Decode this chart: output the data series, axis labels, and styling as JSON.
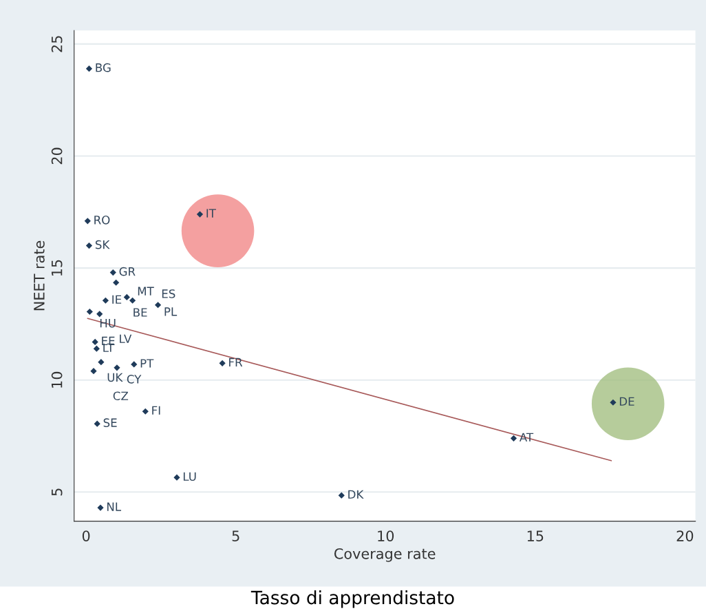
{
  "chart_data": {
    "type": "scatter",
    "xlabel": "Coverage rate",
    "ylabel": "NEET rate",
    "xlim": [
      -0.4,
      20.35
    ],
    "ylim": [
      3.7,
      25.6
    ],
    "xticks": [
      0,
      5,
      10,
      15,
      20
    ],
    "yticks": [
      5,
      10,
      15,
      20,
      25
    ],
    "grid": "y",
    "legend": false,
    "series": [
      {
        "marker": "diamond",
        "color": "#1f3b5a",
        "x": [
          0.1,
          0.05,
          0.1,
          3.8,
          0.9,
          1.0,
          1.36,
          1.55,
          2.4,
          0.65,
          0.12,
          0.45,
          0.3,
          0.35,
          0.5,
          0.25,
          1.03,
          1.6,
          4.55,
          1.98,
          0.37,
          3.03,
          0.48,
          8.53,
          14.28,
          17.6
        ],
        "values": [
          23.9,
          17.1,
          16.0,
          17.4,
          14.8,
          14.35,
          13.7,
          13.55,
          13.35,
          13.55,
          13.05,
          12.95,
          11.7,
          11.4,
          10.8,
          10.4,
          10.55,
          10.7,
          10.75,
          8.6,
          8.05,
          5.65,
          4.3,
          4.85,
          7.4,
          9.0
        ]
      },
      {
        "type": "line",
        "color": "#a85a5a",
        "x": [
          0.05,
          17.54
        ],
        "values": [
          12.75,
          6.4
        ]
      }
    ],
    "annotations": [
      {
        "text": "BG",
        "x": 0.1,
        "y": 23.9
      },
      {
        "text": "RO",
        "x": 0.05,
        "y": 17.1
      },
      {
        "text": "SK",
        "x": 0.1,
        "y": 16.0
      },
      {
        "text": "IT",
        "x": 3.8,
        "y": 17.4
      },
      {
        "text": "GR",
        "x": 0.9,
        "y": 14.8
      },
      {
        "text": "MT",
        "x": 1.0,
        "y": 14.35
      },
      {
        "text": "BE",
        "x": 1.36,
        "y": 13.7
      },
      {
        "text": "ES",
        "x": 1.55,
        "y": 13.55
      },
      {
        "text": "PL",
        "x": 2.4,
        "y": 13.35
      },
      {
        "text": "IE",
        "x": 0.65,
        "y": 13.55
      },
      {
        "text": "HU",
        "x": 0.12,
        "y": 13.05
      },
      {
        "text": "LV",
        "x": 0.45,
        "y": 12.95
      },
      {
        "text": "EE",
        "x": 0.3,
        "y": 11.7
      },
      {
        "text": "LT",
        "x": 0.35,
        "y": 11.4
      },
      {
        "text": "UK",
        "x": 0.5,
        "y": 10.8
      },
      {
        "text": "CZ",
        "x": 0.25,
        "y": 10.4
      },
      {
        "text": "CY",
        "x": 1.03,
        "y": 10.55
      },
      {
        "text": "PT",
        "x": 1.6,
        "y": 10.7
      },
      {
        "text": "FR",
        "x": 4.55,
        "y": 10.75
      },
      {
        "text": "FI",
        "x": 1.98,
        "y": 8.6
      },
      {
        "text": "SE",
        "x": 0.37,
        "y": 8.05
      },
      {
        "text": "LU",
        "x": 3.03,
        "y": 5.65
      },
      {
        "text": "NL",
        "x": 0.48,
        "y": 4.3
      },
      {
        "text": "DK",
        "x": 8.53,
        "y": 4.85
      },
      {
        "text": "AT",
        "x": 14.28,
        "y": 7.4
      },
      {
        "text": "DE",
        "x": 17.6,
        "y": 9.0
      },
      "Tasso di apprendistato"
    ]
  }
}
